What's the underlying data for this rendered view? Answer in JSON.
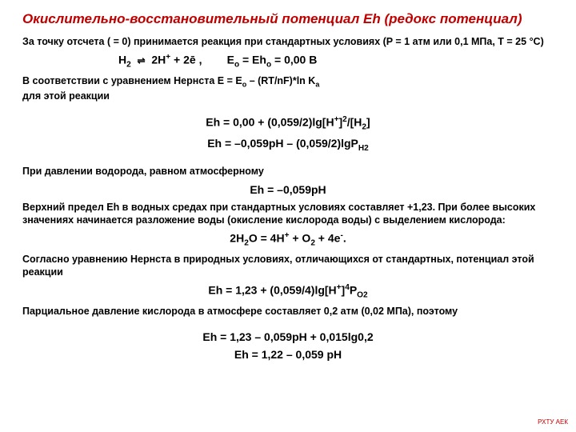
{
  "title_color": "#c00000",
  "title_text": "Окислительно-восстановительный потенциал Eh (редокс потенциал)",
  "p1": "За точку отсчета ( = 0) принимается реакция при стандартных условиях (P = 1 атм или 0,1 МПа, T = 25 °C)",
  "eq1_a": "H",
  "eq1_b": "2H",
  "eq1_c": " + 2ē ,",
  "eq1_d": "E",
  "eq1_e": " = Eh",
  "eq1_f": " = 0,00 В",
  "p2a": "В соответствии с уравнением Нернста E = E",
  "p2b": " – (RT/nF)*ln K",
  "p2c": "для этой реакции",
  "eq2": "Eh = 0,00 + (0,059/2)lg[H",
  "eq2b": "/[H",
  "eq3": "Eh = –0,059pH – (0,059/2)lgP",
  "p3": "При давлении водорода, равном атмосферному",
  "eq4": "Eh = –0,059pH",
  "p4": "Верхний предел Eh в водных средах при стандартных условиях составляет +1,23. При более высоких значениях начинается разложение воды (окисление кислорода воды) с выделением кислорода:",
  "eq5a": "2H",
  "eq5b": "O = 4H",
  "eq5c": " + O",
  "eq5d": " + 4e",
  "p5": "Согласно уравнению Нернста в природных условиях, отличающихся от стандартных, потенциал этой реакции",
  "eq6": "Eh = 1,23 + (0,059/4)lg[H",
  "eq6b": "P",
  "p6": "Парциальное давление кислорода в атмосфере составляет 0,2 атм (0,02 МПа), поэтому",
  "eq7": "Eh = 1,23 – 0,059pH + 0,015lg0,2",
  "eq8": "Eh = 1,22 – 0,059 pH",
  "footer": "РХТУ АЕК"
}
